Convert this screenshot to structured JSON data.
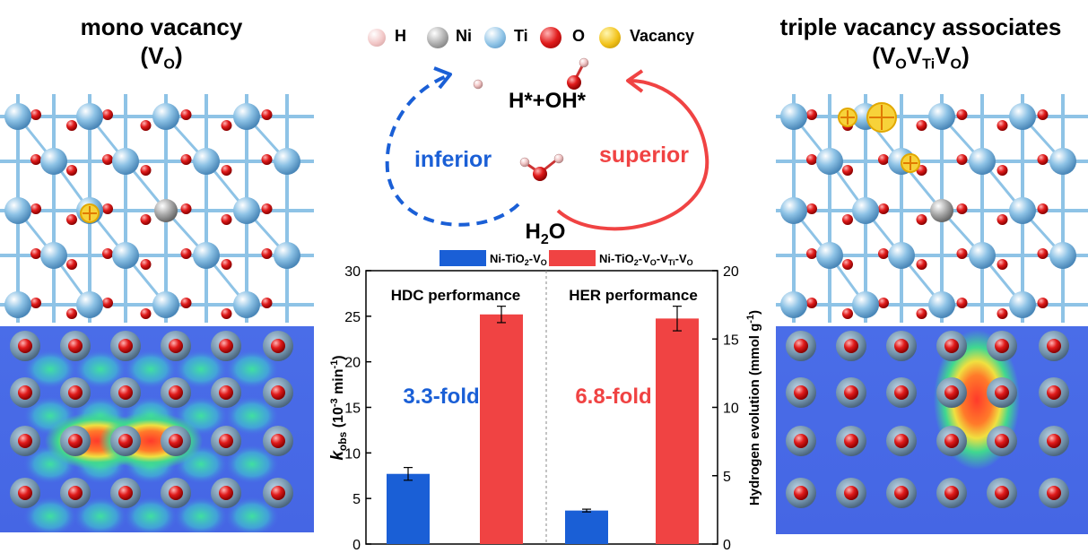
{
  "left_panel": {
    "title": "mono vacancy",
    "label_main": "V",
    "label_sub": "O"
  },
  "right_panel": {
    "title": "triple vacancy associates",
    "label_parts": [
      {
        "main": "V",
        "sub": "O"
      },
      {
        "main": "V",
        "sub": "Ti"
      },
      {
        "main": "V",
        "sub": "O"
      }
    ]
  },
  "atom_legend": [
    {
      "label": "H",
      "color": "#f2c7c7"
    },
    {
      "label": "Ni",
      "color": "#a8a8a8"
    },
    {
      "label": "Ti",
      "color": "#8ec3e6"
    },
    {
      "label": "O",
      "color": "#e01b1b"
    },
    {
      "label": "Vacancy",
      "color": "#f2c21a"
    }
  ],
  "cycle": {
    "product": "H*+OH*",
    "reactant_main": "H",
    "reactant_sub": "2",
    "reactant_tail": "O",
    "left_label": "inferior",
    "right_label": "superior",
    "left_color": "#1a5fd6",
    "right_color": "#f04343"
  },
  "chart_data": {
    "type": "bar",
    "legend": [
      {
        "name_parts": [
          [
            "Ni-TiO",
            "",
            false
          ],
          [
            "2",
            "sub",
            false
          ],
          [
            "-V",
            "",
            false
          ],
          [
            "O",
            "sub",
            false
          ]
        ],
        "color": "#1a5fd6"
      },
      {
        "name_parts": [
          [
            "Ni-TiO",
            "",
            false
          ],
          [
            "2",
            "sub",
            false
          ],
          [
            "-V",
            "",
            false
          ],
          [
            "O",
            "sub",
            false
          ],
          [
            "-V",
            "",
            false
          ],
          [
            "Ti",
            "sub",
            false
          ],
          [
            "-V",
            "",
            false
          ],
          [
            "O",
            "sub",
            false
          ]
        ],
        "color": "#f04343"
      }
    ],
    "panels": [
      {
        "title": "HDC performance",
        "axis": "left",
        "fold_text": "3.3-fold",
        "fold_color": "#1a5fd6",
        "values": [
          7.7,
          25.2
        ],
        "errors": [
          0.7,
          0.9
        ]
      },
      {
        "title": "HER performance",
        "axis": "right",
        "fold_text": "6.8-fold",
        "fold_color": "#f04343",
        "values": [
          2.45,
          16.5
        ],
        "errors": [
          0.1,
          0.9
        ]
      }
    ],
    "left_axis": {
      "label_main": "k",
      "label_sub": "obs",
      "label_rest": " (10",
      "label_sup": "-3",
      "label_rest2": " min",
      "label_sup2": "-1",
      "label_end": ")",
      "ylim": [
        0,
        30
      ],
      "ticks": [
        "0",
        "5",
        "10",
        "15",
        "20",
        "25",
        "30"
      ]
    },
    "right_axis": {
      "label": "Hydrogen evolution (mmol g",
      "label_sup": "-1",
      "label_end": ")",
      "ylim": [
        0,
        20
      ],
      "ticks": [
        "0",
        "5",
        "10",
        "15",
        "20"
      ]
    }
  }
}
